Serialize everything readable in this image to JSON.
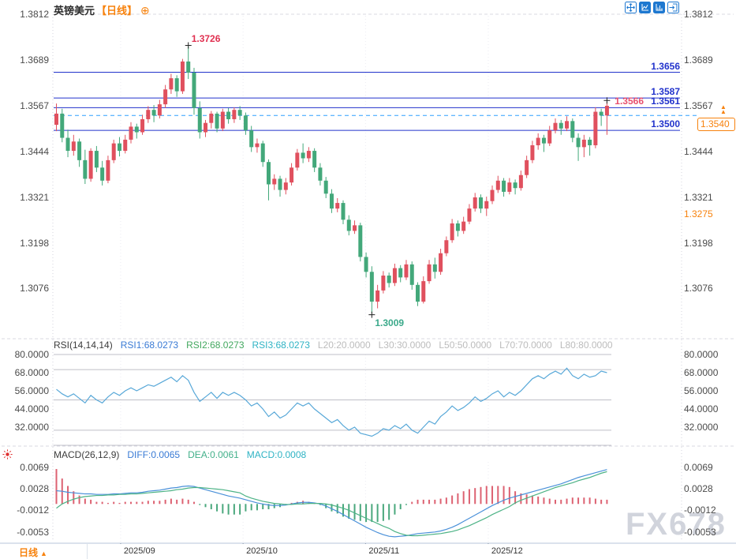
{
  "title": {
    "symbol": "英镑美元",
    "period": "【日线】",
    "add_icon": "⊕"
  },
  "toolbar": {
    "icons": [
      "pan-crosshair-icon",
      "axis-scale-icon",
      "bar-scale-icon",
      "exit-chart-icon"
    ]
  },
  "colors": {
    "up": "#e0505e",
    "down": "#43a87a",
    "level": "#2233cc",
    "dashed": "#2e9fff",
    "orange": "#f7820d",
    "pink": "#e8506e",
    "high_label": "#e03050",
    "low_label": "#3aa98a",
    "rsi": "#58a8d8",
    "diff": "#4a90d9",
    "dea": "#4db386",
    "hist_up": "#dd6272",
    "hist_down": "#4aa87d",
    "divider": "#d8d8e2",
    "axis_text": "#4a4a4a",
    "icon_blue": "#1e78d0",
    "sun_red": "#e03030"
  },
  "watermark": "FX678",
  "bottom_bar": {
    "period_label": "日线",
    "up_triangle": "▲"
  },
  "chart_data": {
    "type": "candlestick-with-indicators",
    "symbol": "英镑美元 (GBP/USD)",
    "period": "日线",
    "months": [
      {
        "label": "2025/09",
        "index": 11.2
      },
      {
        "label": "2025/10",
        "index": 32.55
      },
      {
        "label": "2025/11",
        "index": 53.9
      },
      {
        "label": "2025/12",
        "index": 75.3
      }
    ],
    "main": {
      "axis_ticks": [
        1.3812,
        1.3689,
        1.3567,
        1.3444,
        1.3321,
        1.3198,
        1.3076
      ],
      "levels": [
        1.3656,
        1.3587,
        1.3561,
        1.35
      ],
      "alert": {
        "value": 1.354,
        "label": "1.3540",
        "arrow_glyph": "▲"
      },
      "extra_axis_label": {
        "value": 1.3275,
        "label": "1.3275"
      },
      "current_price": {
        "value": 1.3566,
        "label": "1.3566"
      },
      "high": {
        "value": 1.3726,
        "label": "1.3726",
        "index": 23
      },
      "low": {
        "value": 1.3009,
        "label": "1.3009",
        "index": 55
      },
      "last_marker": {
        "value": 1.3576,
        "index": 96
      },
      "candles": [
        [
          1.3515,
          1.3572,
          1.3498,
          1.3545
        ],
        [
          1.3545,
          1.3558,
          1.3468,
          1.348
        ],
        [
          1.348,
          1.3502,
          1.3428,
          1.3445
        ],
        [
          1.3445,
          1.3488,
          1.3432,
          1.347
        ],
        [
          1.347,
          1.3478,
          1.3402,
          1.342
        ],
        [
          1.342,
          1.3448,
          1.3356,
          1.337
        ],
        [
          1.337,
          1.3452,
          1.3362,
          1.3445
        ],
        [
          1.3445,
          1.3458,
          1.3388,
          1.34
        ],
        [
          1.34,
          1.3418,
          1.3352,
          1.3365
        ],
        [
          1.3365,
          1.3432,
          1.3358,
          1.342
        ],
        [
          1.342,
          1.3475,
          1.3412,
          1.3465
        ],
        [
          1.3465,
          1.3482,
          1.343,
          1.3445
        ],
        [
          1.3445,
          1.3488,
          1.3438,
          1.3475
        ],
        [
          1.3475,
          1.3522,
          1.3465,
          1.351
        ],
        [
          1.351,
          1.3518,
          1.3478,
          1.3495
        ],
        [
          1.3495,
          1.3542,
          1.3488,
          1.353
        ],
        [
          1.353,
          1.3565,
          1.352,
          1.3555
        ],
        [
          1.3555,
          1.3568,
          1.3522,
          1.354
        ],
        [
          1.354,
          1.3582,
          1.3532,
          1.357
        ],
        [
          1.357,
          1.3622,
          1.356,
          1.361
        ],
        [
          1.361,
          1.3652,
          1.3598,
          1.364
        ],
        [
          1.364,
          1.3648,
          1.359,
          1.3605
        ],
        [
          1.3605,
          1.3692,
          1.3598,
          1.3685
        ],
        [
          1.3685,
          1.3726,
          1.3638,
          1.3655
        ],
        [
          1.3655,
          1.3668,
          1.3542,
          1.356
        ],
        [
          1.356,
          1.3578,
          1.3478,
          1.3495
        ],
        [
          1.3495,
          1.3528,
          1.3482,
          1.352
        ],
        [
          1.352,
          1.3552,
          1.3505,
          1.3545
        ],
        [
          1.3545,
          1.355,
          1.3495,
          1.3505
        ],
        [
          1.3505,
          1.3558,
          1.3498,
          1.355
        ],
        [
          1.355,
          1.356,
          1.3518,
          1.353
        ],
        [
          1.353,
          1.3562,
          1.352,
          1.3555
        ],
        [
          1.3555,
          1.3565,
          1.3528,
          1.354
        ],
        [
          1.354,
          1.3548,
          1.3488,
          1.35
        ],
        [
          1.35,
          1.3512,
          1.3442,
          1.3455
        ],
        [
          1.3455,
          1.3478,
          1.344,
          1.3465
        ],
        [
          1.3465,
          1.3472,
          1.3402,
          1.3415
        ],
        [
          1.3415,
          1.3422,
          1.3312,
          1.3355
        ],
        [
          1.3355,
          1.3382,
          1.334,
          1.337
        ],
        [
          1.337,
          1.3378,
          1.3322,
          1.334
        ],
        [
          1.334,
          1.3372,
          1.3328,
          1.336
        ],
        [
          1.336,
          1.3412,
          1.3352,
          1.34
        ],
        [
          1.34,
          1.345,
          1.3392,
          1.344
        ],
        [
          1.344,
          1.3465,
          1.3412,
          1.3425
        ],
        [
          1.3425,
          1.3455,
          1.3415,
          1.3445
        ],
        [
          1.3445,
          1.3452,
          1.3388,
          1.34
        ],
        [
          1.34,
          1.3412,
          1.3352,
          1.3365
        ],
        [
          1.3365,
          1.3375,
          1.3318,
          1.333
        ],
        [
          1.333,
          1.3342,
          1.3278,
          1.329
        ],
        [
          1.329,
          1.3318,
          1.328,
          1.3305
        ],
        [
          1.3305,
          1.3312,
          1.3248,
          1.326
        ],
        [
          1.326,
          1.3272,
          1.3218,
          1.323
        ],
        [
          1.323,
          1.3258,
          1.3222,
          1.3245
        ],
        [
          1.3245,
          1.3252,
          1.3148,
          1.316
        ],
        [
          1.316,
          1.3172,
          1.3105,
          1.312
        ],
        [
          1.312,
          1.3135,
          1.3009,
          1.304
        ],
        [
          1.304,
          1.3085,
          1.3022,
          1.307
        ],
        [
          1.307,
          1.3122,
          1.3062,
          1.311
        ],
        [
          1.311,
          1.3118,
          1.3078,
          1.309
        ],
        [
          1.309,
          1.3142,
          1.3082,
          1.313
        ],
        [
          1.313,
          1.3138,
          1.3092,
          1.3105
        ],
        [
          1.3105,
          1.3152,
          1.3098,
          1.314
        ],
        [
          1.314,
          1.3148,
          1.3072,
          1.3085
        ],
        [
          1.3085,
          1.3092,
          1.3028,
          1.304
        ],
        [
          1.304,
          1.3108,
          1.3035,
          1.3095
        ],
        [
          1.3095,
          1.3152,
          1.3088,
          1.314
        ],
        [
          1.314,
          1.3158,
          1.3102,
          1.312
        ],
        [
          1.312,
          1.3182,
          1.3112,
          1.317
        ],
        [
          1.317,
          1.3215,
          1.3162,
          1.3205
        ],
        [
          1.3205,
          1.3262,
          1.3198,
          1.325
        ],
        [
          1.325,
          1.3258,
          1.3215,
          1.323
        ],
        [
          1.323,
          1.3268,
          1.3222,
          1.3255
        ],
        [
          1.3255,
          1.3302,
          1.3248,
          1.329
        ],
        [
          1.329,
          1.3332,
          1.3282,
          1.332
        ],
        [
          1.332,
          1.3328,
          1.3278,
          1.329
        ],
        [
          1.329,
          1.3322,
          1.327,
          1.331
        ],
        [
          1.331,
          1.3352,
          1.3302,
          1.334
        ],
        [
          1.334,
          1.3378,
          1.3332,
          1.3365
        ],
        [
          1.3365,
          1.3372,
          1.3322,
          1.3335
        ],
        [
          1.3335,
          1.3372,
          1.3328,
          1.336
        ],
        [
          1.336,
          1.3368,
          1.3328,
          1.3345
        ],
        [
          1.3345,
          1.3392,
          1.3338,
          1.338
        ],
        [
          1.338,
          1.3432,
          1.3372,
          1.342
        ],
        [
          1.342,
          1.3472,
          1.3412,
          1.346
        ],
        [
          1.346,
          1.3492,
          1.3448,
          1.348
        ],
        [
          1.348,
          1.3488,
          1.3442,
          1.3465
        ],
        [
          1.3465,
          1.3512,
          1.3458,
          1.35
        ],
        [
          1.35,
          1.3532,
          1.3492,
          1.352
        ],
        [
          1.352,
          1.3528,
          1.3488,
          1.3505
        ],
        [
          1.3505,
          1.3538,
          1.3498,
          1.3525
        ],
        [
          1.3525,
          1.3532,
          1.3468,
          1.348
        ],
        [
          1.348,
          1.3492,
          1.3418,
          1.3455
        ],
        [
          1.3455,
          1.3488,
          1.3428,
          1.3475
        ],
        [
          1.3475,
          1.3482,
          1.3432,
          1.346
        ],
        [
          1.346,
          1.3562,
          1.3452,
          1.355
        ],
        [
          1.355,
          1.3558,
          1.3512,
          1.354
        ],
        [
          1.354,
          1.3576,
          1.3488,
          1.3566
        ]
      ]
    },
    "rsi": {
      "header": [
        {
          "label": "RSI(14,14,14)",
          "color": "#3c3c3c"
        },
        {
          "label": "RSI1:68.0273",
          "color": "#3a7bd5"
        },
        {
          "label": "RSI2:68.0273",
          "color": "#43a85f"
        },
        {
          "label": "RSI3:68.0273",
          "color": "#2fb3c4"
        },
        {
          "label": "L20:20.0000",
          "color": "#bcbcbc"
        },
        {
          "label": "L30:30.0000",
          "color": "#bcbcbc"
        },
        {
          "label": "L50:50.0000",
          "color": "#bcbcbc"
        },
        {
          "label": "L70:70.0000",
          "color": "#bcbcbc"
        },
        {
          "label": "L80:80.0000",
          "color": "#bcbcbc"
        }
      ],
      "axis_ticks": [
        80,
        68,
        56,
        44,
        32
      ],
      "grid_levels": [
        80,
        70,
        50,
        30,
        20
      ],
      "values": [
        57,
        54,
        52,
        54,
        51,
        48,
        53,
        50,
        48,
        52,
        55,
        53,
        56,
        58,
        56,
        58,
        60,
        59,
        61,
        63,
        65,
        62,
        66,
        63,
        55,
        49,
        52,
        55,
        51,
        55,
        53,
        55,
        53,
        50,
        46,
        48,
        44,
        39,
        42,
        38,
        40,
        44,
        48,
        46,
        48,
        44,
        41,
        38,
        35,
        37,
        33,
        30,
        32,
        28,
        27,
        26,
        28,
        31,
        30,
        33,
        31,
        34,
        30,
        28,
        32,
        36,
        34,
        39,
        42,
        46,
        43,
        45,
        48,
        52,
        49,
        51,
        54,
        56,
        52,
        55,
        53,
        56,
        60,
        64,
        66,
        64,
        67,
        69,
        67,
        71,
        66,
        64,
        67,
        65,
        66,
        69,
        68
      ]
    },
    "macd": {
      "header": [
        {
          "label": "MACD(26,12,9)",
          "color": "#3c3c3c"
        },
        {
          "label": "DIFF:0.0065",
          "color": "#3a7bd5"
        },
        {
          "label": "DEA:0.0061",
          "color": "#43b08a"
        },
        {
          "label": "MACD:0.0008",
          "color": "#2fb3c4"
        }
      ],
      "axis_ticks": [
        0.0069,
        0.0028,
        -0.0012,
        -0.0053
      ],
      "unit": 0.0001,
      "diff": [
        25,
        24,
        22,
        21,
        20,
        19,
        19,
        18,
        18,
        18,
        19,
        19,
        20,
        21,
        21,
        22,
        24,
        25,
        26,
        28,
        30,
        31,
        33,
        34,
        33,
        30,
        27,
        24,
        21,
        18,
        15,
        13,
        11,
        8,
        5,
        2,
        0,
        -2,
        -3,
        -3,
        -2,
        0,
        2,
        3,
        3,
        2,
        0,
        -4,
        -9,
        -14,
        -20,
        -26,
        -32,
        -38,
        -44,
        -49,
        -54,
        -58,
        -61,
        -62,
        -61,
        -60,
        -58,
        -56,
        -55,
        -54,
        -53,
        -51,
        -48,
        -44,
        -39,
        -33,
        -27,
        -21,
        -15,
        -9,
        -3,
        2,
        7,
        11,
        14,
        17,
        20,
        23,
        26,
        29,
        32,
        35,
        38,
        42,
        46,
        50,
        53,
        56,
        59,
        62,
        65
      ],
      "dea": [
        -8,
        0,
        5,
        9,
        12,
        14,
        15,
        16,
        16,
        17,
        17,
        18,
        18,
        19,
        19,
        20,
        21,
        22,
        23,
        24,
        25,
        27,
        28,
        30,
        31,
        31,
        30,
        29,
        28,
        27,
        25,
        23,
        21,
        15,
        11,
        8,
        5,
        3,
        1,
        0,
        -1,
        -1,
        0,
        0,
        1,
        1,
        1,
        0,
        -2,
        -5,
        -8,
        -12,
        -17,
        -22,
        -27,
        -32,
        -37,
        -42,
        -46,
        -52,
        -56,
        -59,
        -60,
        -60,
        -59,
        -58,
        -57,
        -56,
        -54,
        -52,
        -49,
        -45,
        -41,
        -36,
        -31,
        -26,
        -20,
        -15,
        -10,
        -5,
        2,
        7,
        11,
        15,
        19,
        23,
        27,
        31,
        34,
        37,
        40,
        44,
        47,
        50,
        54,
        58,
        61
      ]
    }
  }
}
